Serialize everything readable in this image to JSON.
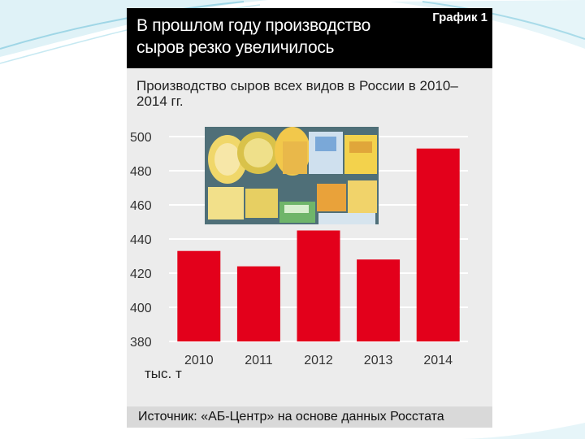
{
  "header": {
    "title": "В прошлом году производство сыров резко увеличилось",
    "badge": "График 1"
  },
  "colors": {
    "bar": "#e3001b",
    "header_bg": "#000000",
    "panel_bg": "#ececec"
  },
  "footer": {
    "source": "Источник: «АБ-Центр» на основе данных Росстата"
  },
  "photo": {
    "icon": "cheese-photo"
  },
  "chart_data": {
    "type": "bar",
    "title": "Производство сыров всех видов в России в 2010–2014 гг.",
    "unit": "тыс. т",
    "categories": [
      "2010",
      "2011",
      "2012",
      "2013",
      "2014"
    ],
    "values": [
      433,
      424,
      445,
      428,
      493
    ],
    "ylim": [
      380,
      500
    ],
    "yticks": [
      "380",
      "400",
      "420",
      "440",
      "460",
      "480",
      "500"
    ],
    "grid": true,
    "legend": "none"
  }
}
